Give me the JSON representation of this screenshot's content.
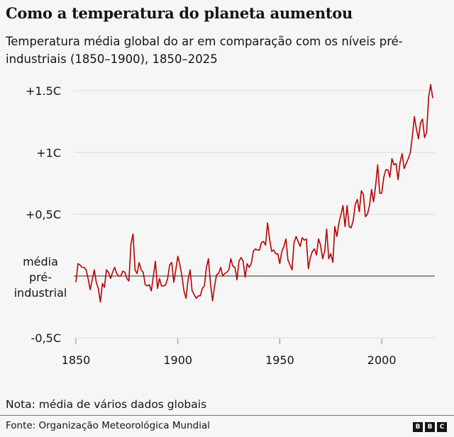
{
  "title": "Como a temperatura do planeta aumentou",
  "subtitle": "Temperatura média global do ar em comparação com os níveis pré-industriais (1850–1900), 1850–2025",
  "note": "Nota: média de vários dados globais",
  "source": "Fonte: Organização Meteorológica Mundial",
  "logo": [
    "B",
    "B",
    "C"
  ],
  "chart_data": {
    "type": "line",
    "xlim": [
      1850,
      2025
    ],
    "ylim": [
      -0.5,
      1.5
    ],
    "x_ticks": [
      1850,
      1900,
      1950,
      2000
    ],
    "x_tick_labels": [
      "1850",
      "1900",
      "1950",
      "2000"
    ],
    "y_ticks": [
      1.5,
      1,
      0.5,
      0,
      -0.5
    ],
    "y_tick_labels": [
      "+1.5C",
      "+1C",
      "+0,5C",
      "média pré-industrial",
      "-0,5C"
    ],
    "grid": true,
    "line_color": "#b80000",
    "baseline_color": "#555555",
    "start_year": 1850,
    "values": [
      -0.05,
      0.1,
      0.09,
      0.07,
      0.07,
      0.05,
      -0.02,
      -0.11,
      -0.03,
      0.05,
      -0.05,
      -0.1,
      -0.21,
      -0.06,
      -0.09,
      0.05,
      0.03,
      -0.02,
      0.03,
      0.07,
      0.02,
      0.0,
      0.0,
      0.04,
      0.03,
      -0.02,
      -0.04,
      0.26,
      0.34,
      0.05,
      0.02,
      0.11,
      0.05,
      0.03,
      -0.07,
      -0.08,
      -0.07,
      -0.12,
      0.0,
      0.12,
      -0.1,
      -0.02,
      -0.08,
      -0.08,
      -0.07,
      -0.02,
      0.09,
      0.11,
      -0.05,
      0.05,
      0.16,
      0.09,
      0.0,
      -0.12,
      -0.18,
      -0.03,
      0.05,
      -0.12,
      -0.15,
      -0.18,
      -0.16,
      -0.16,
      -0.1,
      -0.08,
      0.07,
      0.14,
      -0.06,
      -0.2,
      -0.08,
      0.01,
      0.02,
      0.07,
      0.0,
      0.02,
      0.03,
      0.05,
      0.14,
      0.08,
      0.07,
      -0.03,
      0.12,
      0.15,
      0.12,
      -0.01,
      0.1,
      0.07,
      0.1,
      0.2,
      0.22,
      0.21,
      0.21,
      0.27,
      0.28,
      0.25,
      0.43,
      0.3,
      0.2,
      0.21,
      0.18,
      0.18,
      0.1,
      0.2,
      0.24,
      0.3,
      0.13,
      0.09,
      0.05,
      0.27,
      0.32,
      0.28,
      0.24,
      0.31,
      0.29,
      0.3,
      0.06,
      0.15,
      0.2,
      0.22,
      0.17,
      0.3,
      0.25,
      0.14,
      0.2,
      0.38,
      0.14,
      0.18,
      0.11,
      0.4,
      0.32,
      0.43,
      0.5,
      0.57,
      0.4,
      0.57,
      0.4,
      0.39,
      0.45,
      0.58,
      0.62,
      0.52,
      0.69,
      0.66,
      0.48,
      0.5,
      0.57,
      0.7,
      0.6,
      0.73,
      0.9,
      0.67,
      0.67,
      0.8,
      0.86,
      0.86,
      0.8,
      0.95,
      0.9,
      0.91,
      0.78,
      0.92,
      0.99,
      0.87,
      0.91,
      0.95,
      1.0,
      1.13,
      1.29,
      1.19,
      1.11,
      1.24,
      1.27,
      1.12,
      1.16,
      1.45,
      1.55,
      1.44
    ]
  }
}
